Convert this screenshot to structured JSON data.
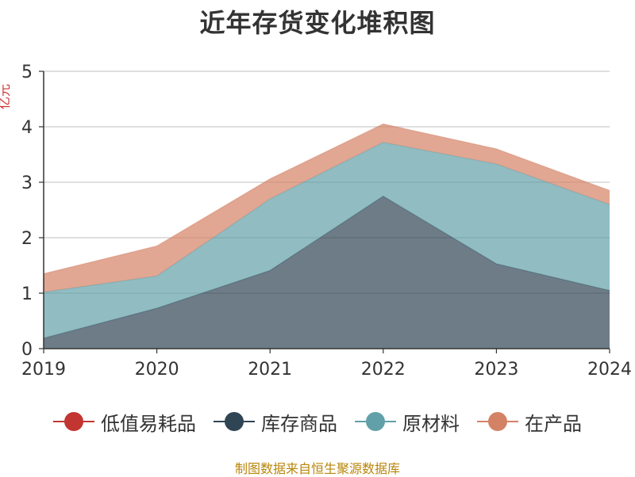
{
  "title": "近年存货变化堆积图",
  "ylabel": "亿元",
  "footer": "制图数据来自恒生聚源数据库",
  "chart_data": {
    "type": "area",
    "title": "近年存货变化堆积图",
    "ylabel": "亿元",
    "xlabel": "",
    "stacked": true,
    "x": [
      "2019",
      "2020",
      "2021",
      "2022",
      "2023",
      "2024"
    ],
    "ylim": [
      0,
      5
    ],
    "yticks": [
      0,
      1,
      2,
      3,
      4,
      5
    ],
    "grid": true,
    "legend_position": "bottom",
    "series": [
      {
        "name": "低值易耗品",
        "color": "#c23531",
        "values": [
          0,
          0,
          0,
          0,
          0,
          0
        ]
      },
      {
        "name": "库存商品",
        "color": "#2f4554",
        "values": [
          0.19,
          0.73,
          1.41,
          2.75,
          1.53,
          1.05
        ]
      },
      {
        "name": "原材料",
        "color": "#61a0a8",
        "values": [
          0.83,
          0.58,
          1.29,
          0.97,
          1.8,
          1.55
        ]
      },
      {
        "name": "在产品",
        "color": "#d48265",
        "values": [
          0.33,
          0.54,
          0.36,
          0.33,
          0.27,
          0.25
        ]
      }
    ]
  }
}
